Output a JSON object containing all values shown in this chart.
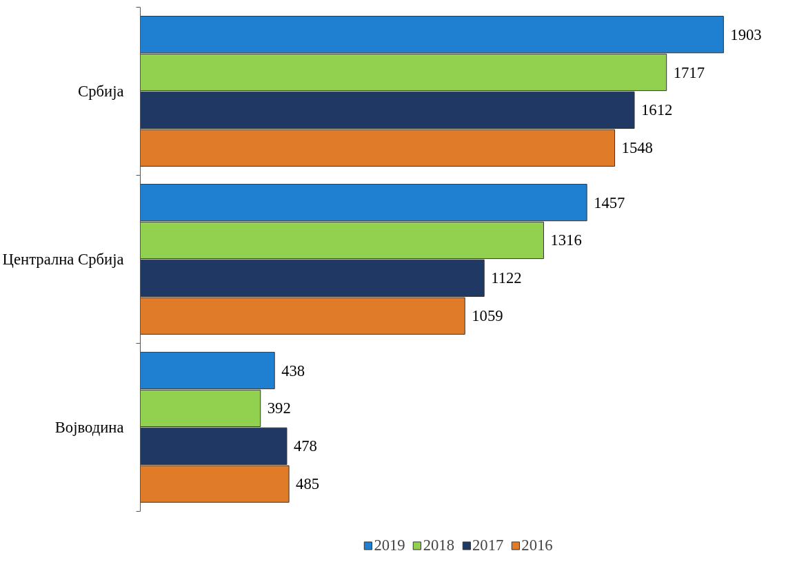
{
  "chart_data": {
    "type": "bar",
    "orientation": "horizontal",
    "categories": [
      "Србија",
      "Централна Србија",
      "Војводина"
    ],
    "series": [
      {
        "name": "2019",
        "color": "#1f7fd0",
        "values": [
          1903,
          1457,
          438
        ]
      },
      {
        "name": "2018",
        "color": "#92d050",
        "values": [
          1717,
          1316,
          392
        ]
      },
      {
        "name": "2017",
        "color": "#1f3864",
        "values": [
          1612,
          1122,
          478
        ]
      },
      {
        "name": "2016",
        "color": "#e07b28",
        "values": [
          1548,
          1059,
          485
        ]
      }
    ],
    "data_labels": true,
    "legend": "bottom",
    "grid": false
  }
}
